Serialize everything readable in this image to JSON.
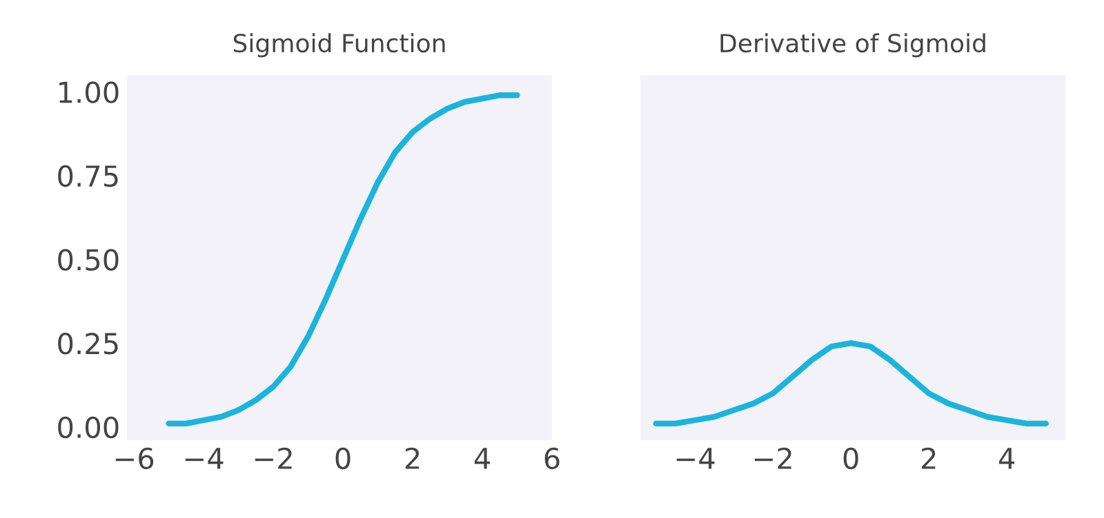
{
  "chart_data": [
    {
      "type": "line",
      "title": "Sigmoid Function",
      "x": [
        -5,
        -4.5,
        -4,
        -3.5,
        -3,
        -2.5,
        -2,
        -1.5,
        -1,
        -0.5,
        0,
        0.5,
        1,
        1.5,
        2,
        2.5,
        3,
        3.5,
        4,
        4.5,
        5
      ],
      "series": [
        {
          "color": "#1ab4dc",
          "values": [
            0.01,
            0.01,
            0.02,
            0.03,
            0.05,
            0.08,
            0.12,
            0.18,
            0.27,
            0.38,
            0.5,
            0.62,
            0.73,
            0.82,
            0.88,
            0.92,
            0.95,
            0.97,
            0.98,
            0.99,
            0.99
          ]
        }
      ],
      "xlim": [
        -6.2,
        6.0
      ],
      "xticks": [
        -6,
        -4,
        -2,
        0,
        2,
        4,
        6
      ],
      "ylim": [
        -0.04,
        1.05
      ],
      "yticks": [
        {
          "value": 0,
          "label": "0.00"
        },
        {
          "value": 0.25,
          "label": "0.25"
        },
        {
          "value": 0.5,
          "label": "0.50"
        },
        {
          "value": 0.75,
          "label": "0.75"
        },
        {
          "value": 1,
          "label": "1.00"
        }
      ],
      "grid": false
    },
    {
      "type": "line",
      "title": "Derivative of Sigmoid",
      "x": [
        -5,
        -4.5,
        -4,
        -3.5,
        -3,
        -2.5,
        -2,
        -1.5,
        -1,
        -0.5,
        0,
        0.5,
        1,
        1.5,
        2,
        2.5,
        3,
        3.5,
        4,
        4.5,
        5
      ],
      "series": [
        {
          "color": "#1ab4dc",
          "values": [
            0.01,
            0.01,
            0.02,
            0.03,
            0.05,
            0.07,
            0.1,
            0.15,
            0.2,
            0.24,
            0.25,
            0.24,
            0.2,
            0.15,
            0.1,
            0.07,
            0.05,
            0.03,
            0.02,
            0.01,
            0.01
          ]
        }
      ],
      "xlim": [
        -5.4,
        5.5
      ],
      "xticks": [
        -4,
        -2,
        0,
        2,
        4
      ],
      "ylim": [
        -0.04,
        1.05
      ],
      "yticks": [
        {
          "value": 0,
          "label": null
        },
        {
          "value": 0.25,
          "label": null
        },
        {
          "value": 0.5,
          "label": null
        },
        {
          "value": 0.75,
          "label": null
        },
        {
          "value": 1,
          "label": null
        }
      ],
      "tick_labels": "x",
      "grid": false
    }
  ]
}
